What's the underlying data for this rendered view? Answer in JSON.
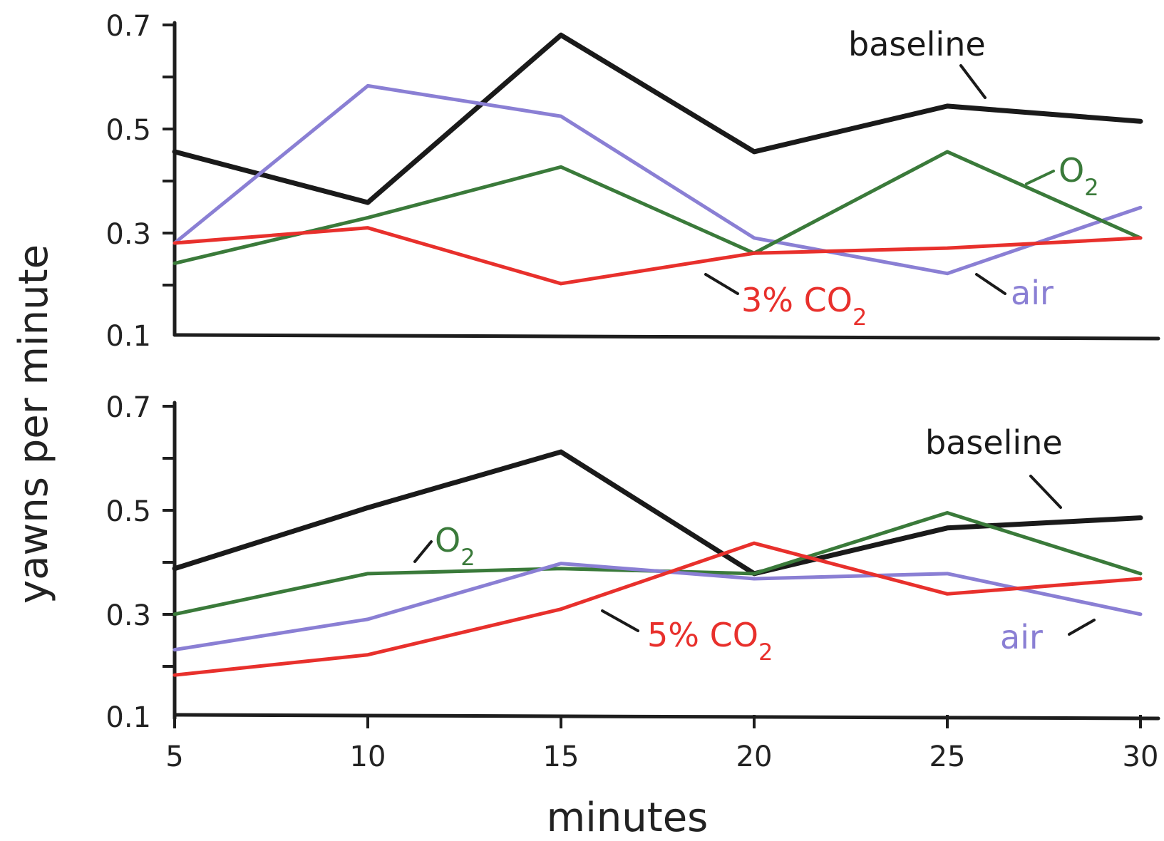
{
  "chart_data": [
    {
      "type": "line",
      "ylabel": "yawns per minute",
      "xlabel": "",
      "ylim": [
        0.1,
        0.7
      ],
      "yticks": [
        "0.7",
        "0.5",
        "0.3",
        "0.1"
      ],
      "x": [
        5,
        10,
        15,
        20,
        25,
        30
      ],
      "series": [
        {
          "name": "baseline",
          "color": "#1a1a1a",
          "values": [
            0.45,
            0.35,
            0.68,
            0.45,
            0.54,
            0.51
          ]
        },
        {
          "name": "air",
          "color": "#8a7fd4",
          "values": [
            0.27,
            0.58,
            0.52,
            0.28,
            0.21,
            0.34
          ]
        },
        {
          "name": "O2",
          "color": "#3a7a3a",
          "values": [
            0.23,
            0.32,
            0.42,
            0.25,
            0.45,
            0.28
          ]
        },
        {
          "name": "3% CO2",
          "color": "#e8302c",
          "values": [
            0.27,
            0.3,
            0.19,
            0.25,
            0.26,
            0.28
          ]
        }
      ]
    },
    {
      "type": "line",
      "ylabel": "yawns per minute",
      "xlabel": "minutes",
      "ylim": [
        0.1,
        0.7
      ],
      "yticks": [
        "0.7",
        "0.5",
        "0.3",
        "0.1"
      ],
      "xticks": [
        "5",
        "10",
        "15",
        "20",
        "25",
        "30"
      ],
      "x": [
        5,
        10,
        15,
        20,
        25,
        30
      ],
      "series": [
        {
          "name": "baseline",
          "color": "#1a1a1a",
          "values": [
            0.38,
            0.5,
            0.61,
            0.37,
            0.46,
            0.48
          ]
        },
        {
          "name": "O2",
          "color": "#3a7a3a",
          "values": [
            0.29,
            0.37,
            0.38,
            0.37,
            0.49,
            0.37
          ]
        },
        {
          "name": "air",
          "color": "#8a7fd4",
          "values": [
            0.22,
            0.28,
            0.39,
            0.36,
            0.37,
            0.29
          ]
        },
        {
          "name": "5% CO2",
          "color": "#e8302c",
          "values": [
            0.17,
            0.21,
            0.3,
            0.43,
            0.33,
            0.36
          ]
        }
      ]
    }
  ]
}
